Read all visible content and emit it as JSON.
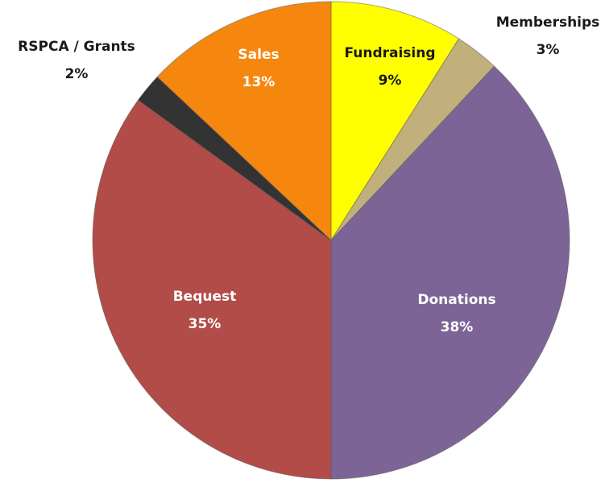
{
  "chart_data": {
    "type": "pie",
    "categories": [
      "Fundraising",
      "Memberships",
      "Donations",
      "Bequest",
      "RSPCA / Grants",
      "Sales"
    ],
    "values": [
      9,
      3,
      38,
      35,
      2,
      13
    ],
    "value_labels": [
      "9%",
      "3%",
      "38%",
      "35%",
      "2%",
      "13%"
    ],
    "colors": [
      "#ffff00",
      "#c2b07c",
      "#7c6596",
      "#b24c48",
      "#333333",
      "#f5870f"
    ]
  }
}
